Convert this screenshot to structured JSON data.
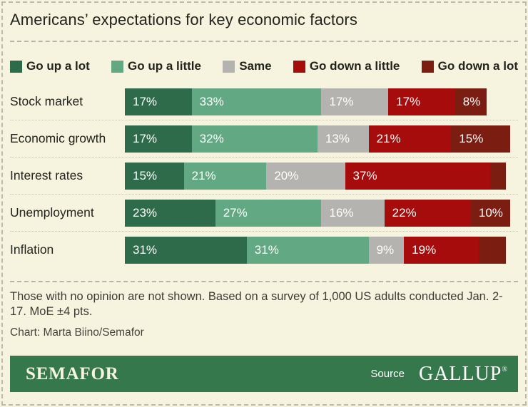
{
  "title": "Americans’ expectations for key economic factors",
  "chart_data": {
    "type": "bar",
    "subtype": "stacked-horizontal",
    "unit": "%",
    "xlim": [
      0,
      100
    ],
    "grid": false,
    "legend_position": "top",
    "categories": [
      "Stock market",
      "Economic growth",
      "Interest rates",
      "Unemployment",
      "Inflation"
    ],
    "series": [
      {
        "name": "Go up a lot",
        "color": "#2E6B4B",
        "values": [
          17,
          17,
          15,
          23,
          31
        ]
      },
      {
        "name": "Go up a little",
        "color": "#62A983",
        "values": [
          33,
          32,
          21,
          27,
          31
        ]
      },
      {
        "name": "Same",
        "color": "#B5B3B0",
        "values": [
          17,
          13,
          20,
          16,
          9
        ]
      },
      {
        "name": "Go down a little",
        "color": "#A60C0B",
        "values": [
          17,
          21,
          37,
          22,
          19
        ]
      },
      {
        "name": "Go down a lot",
        "color": "#7C1D12",
        "values": [
          8,
          15,
          4,
          10,
          7
        ]
      }
    ],
    "hidden_labels": [
      {
        "category": "Interest rates",
        "series": "Go down a lot"
      },
      {
        "category": "Inflation",
        "series": "Go down a lot"
      }
    ],
    "title": "Americans’ expectations for key economic factors"
  },
  "footnote": "Those with no opinion are not shown. Based on a survey of 1,000 US adults conducted Jan. 2-17. MoE ±4 pts.",
  "credit": "Chart: Marta Biino/Semafor",
  "footer": {
    "brand": "SEMAFOR",
    "source_label": "Source",
    "source_name": "GALLUP",
    "registered_mark": "®"
  },
  "colors": {
    "background": "#F6F4DE",
    "footer_bar": "#35784B",
    "text": "#23231E"
  }
}
